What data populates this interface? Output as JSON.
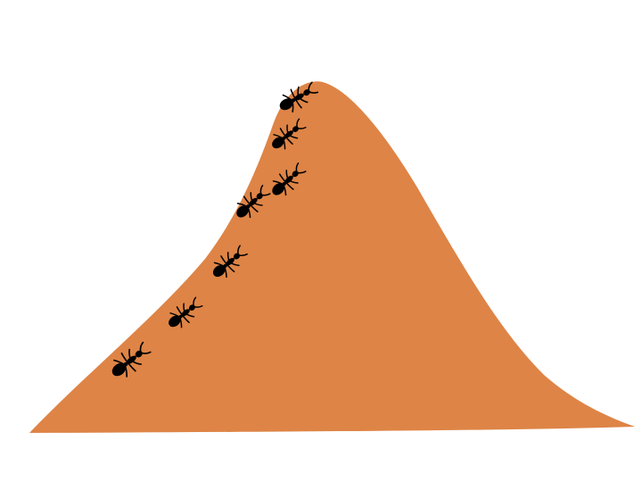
{
  "illustration": {
    "subject": "ant-hill",
    "icon": "ant-icon",
    "ant_count": 7,
    "colors": {
      "background": "#ffffff",
      "hill": "#de8446",
      "ant": "#000000"
    }
  }
}
